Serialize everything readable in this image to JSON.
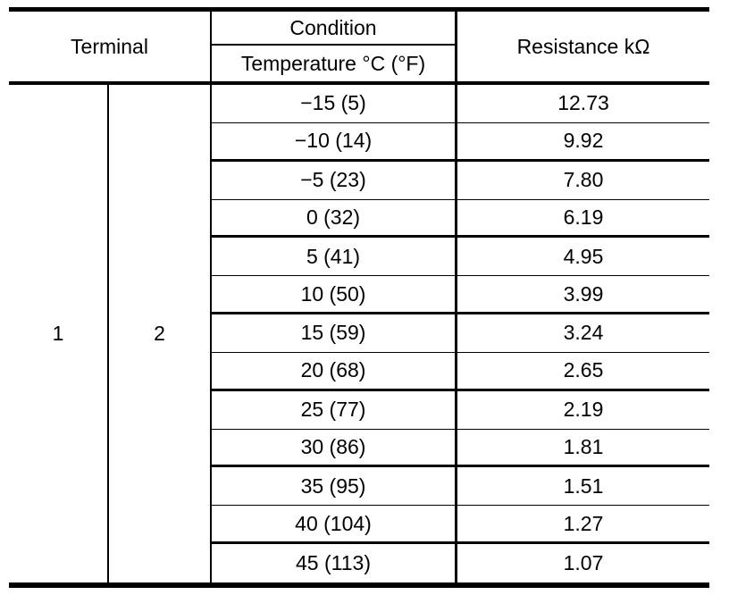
{
  "page": {
    "background": "#ffffff",
    "line_color": "#000000",
    "text_color": "#000000"
  },
  "table": {
    "header": {
      "terminal": "Terminal",
      "condition": "Condition",
      "temperature": "Temperature °C (°F)",
      "resistance": "Resistance kΩ"
    },
    "terminal_columns": [
      "1",
      "2"
    ],
    "rows": [
      {
        "temperature": "−15 (5)",
        "resistance": "12.73"
      },
      {
        "temperature": "−10 (14)",
        "resistance": "9.92"
      },
      {
        "temperature": "−5 (23)",
        "resistance": "7.80"
      },
      {
        "temperature": "0 (32)",
        "resistance": "6.19"
      },
      {
        "temperature": "5 (41)",
        "resistance": "4.95"
      },
      {
        "temperature": "10 (50)",
        "resistance": "3.99"
      },
      {
        "temperature": "15 (59)",
        "resistance": "3.24"
      },
      {
        "temperature": "20 (68)",
        "resistance": "2.65"
      },
      {
        "temperature": "25 (77)",
        "resistance": "2.19"
      },
      {
        "temperature": "30 (86)",
        "resistance": "1.81"
      },
      {
        "temperature": "35 (95)",
        "resistance": "1.51"
      },
      {
        "temperature": "40 (104)",
        "resistance": "1.27"
      },
      {
        "temperature": "45 (113)",
        "resistance": "1.07"
      }
    ]
  }
}
